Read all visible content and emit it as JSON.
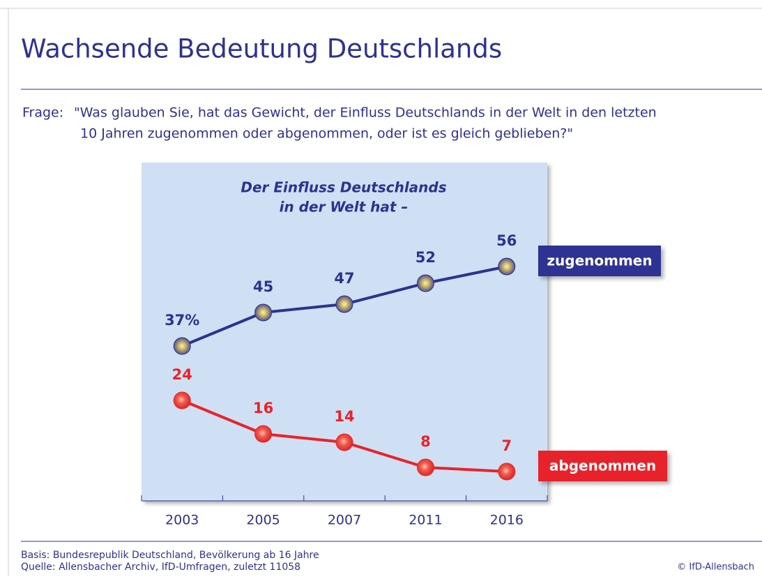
{
  "chart_data": {
    "type": "line",
    "title": "Wachsende Bedeutung Deutschlands",
    "question_label": "Frage:",
    "question": [
      "\"Was glauben Sie, hat das Gewicht, der Einfluss Deutschlands in der Welt in den letzten",
      "10 Jahren zugenommen oder abgenommen, oder ist es gleich geblieben?\""
    ],
    "subtitle": [
      "Der Einfluss Deutschlands",
      "in der Welt hat –"
    ],
    "categories": [
      "2003",
      "2005",
      "2007",
      "2011",
      "2016"
    ],
    "series": [
      {
        "name": "zugenommen",
        "color": "#2e3192",
        "values": [
          37,
          45,
          47,
          52,
          56
        ],
        "value_labels": [
          "37%",
          "45",
          "47",
          "52",
          "56"
        ]
      },
      {
        "name": "abgenommen",
        "color": "#e8232a",
        "values": [
          24,
          16,
          14,
          8,
          7
        ]
      }
    ],
    "notes": [
      "Basis: Bundesrepublik Deutschland, Bevölkerung ab 16 Jahre",
      "Quelle: Allensbacher Archiv, IfD-Umfragen,  zuletzt 11058"
    ],
    "copyright": "© IfD-Allensbach"
  }
}
